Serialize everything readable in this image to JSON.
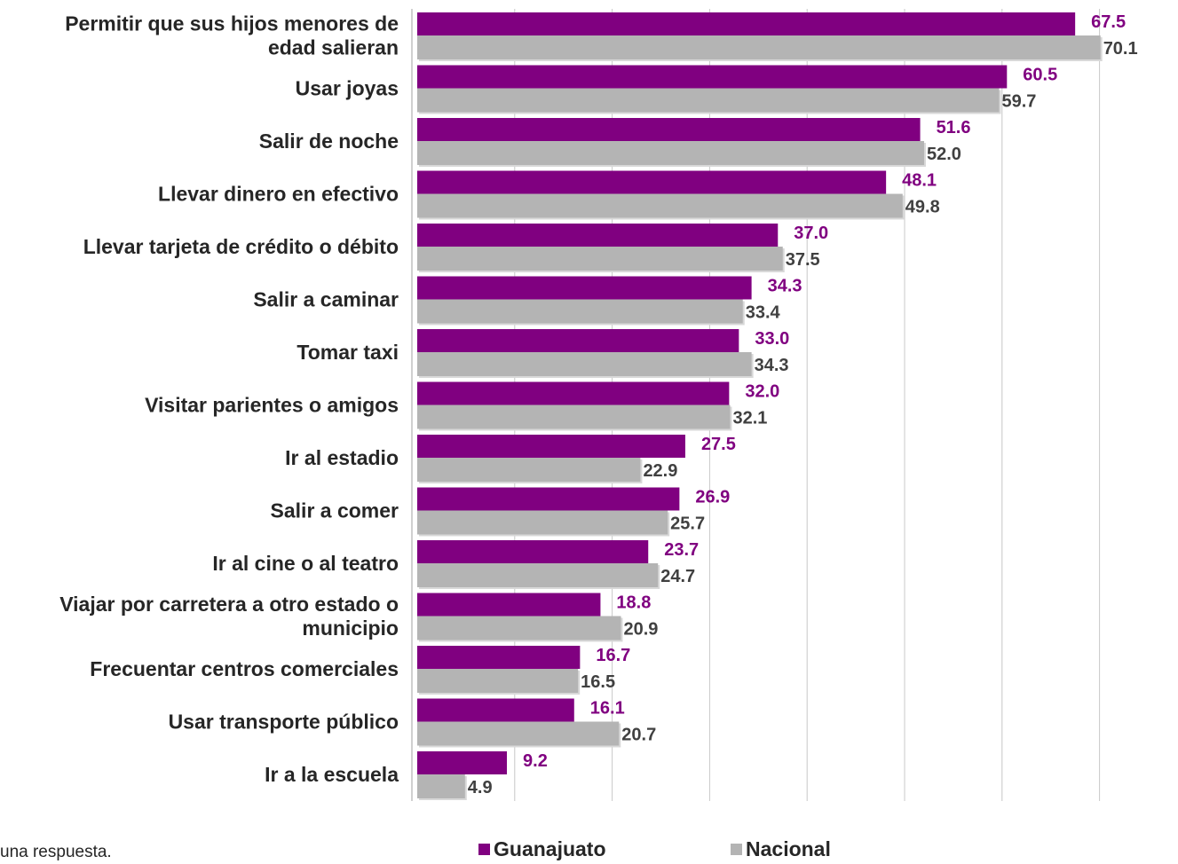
{
  "footnote": "una respuesta.",
  "colors": {
    "guanajuato": "#800080",
    "nacional": "#b4b4b4",
    "grid": "#c8c8c8",
    "nacional_label": "#404040"
  },
  "chart_data": {
    "type": "bar",
    "orientation": "horizontal",
    "xlim": [
      0,
      70
    ],
    "grid": true,
    "legend_position": "bottom",
    "categories": [
      [
        "Permitir que sus hijos menores de",
        "edad salieran"
      ],
      [
        "Usar joyas"
      ],
      [
        "Salir de noche"
      ],
      [
        "Llevar dinero en efectivo"
      ],
      [
        "Llevar tarjeta de crédito o débito"
      ],
      [
        "Salir a caminar"
      ],
      [
        "Tomar taxi"
      ],
      [
        "Visitar parientes o amigos"
      ],
      [
        "Ir al estadio"
      ],
      [
        "Salir a comer"
      ],
      [
        "Ir al cine o al teatro"
      ],
      [
        "Viajar por carretera a otro estado o",
        "municipio"
      ],
      [
        "Frecuentar centros comerciales"
      ],
      [
        "Usar transporte público"
      ],
      [
        "Ir a la escuela"
      ]
    ],
    "series": [
      {
        "name": "Guanajuato",
        "values": [
          67.5,
          60.5,
          51.6,
          48.1,
          37.0,
          34.3,
          33.0,
          32.0,
          27.5,
          26.9,
          23.7,
          18.8,
          16.7,
          16.1,
          9.2
        ]
      },
      {
        "name": "Nacional",
        "values": [
          70.1,
          59.7,
          52.0,
          49.8,
          37.5,
          33.4,
          34.3,
          32.1,
          22.9,
          25.7,
          24.7,
          20.9,
          16.5,
          20.7,
          4.9
        ]
      }
    ]
  }
}
